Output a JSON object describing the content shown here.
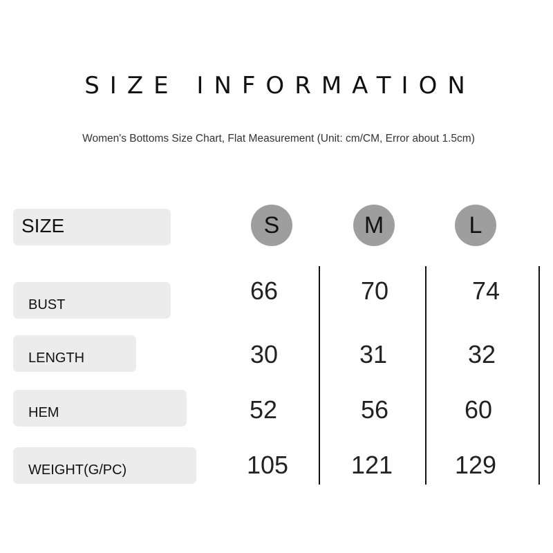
{
  "title": "SIZE INFORMATION",
  "subtitle": "Women's Bottoms Size Chart, Flat Measurement (Unit: cm/CM, Error about 1.5cm)",
  "header_label": "SIZE",
  "sizes": [
    "S",
    "M",
    "L"
  ],
  "rows": [
    {
      "label": "BUST",
      "values": [
        "66",
        "70",
        "74"
      ]
    },
    {
      "label": "LENGTH",
      "values": [
        "30",
        "31",
        "32"
      ]
    },
    {
      "label": "HEM",
      "values": [
        "52",
        "56",
        "60"
      ]
    },
    {
      "label": "WEIGHT(G/PC)",
      "values": [
        "105",
        "121",
        "129"
      ]
    }
  ],
  "colors": {
    "label_bg": "#ececec",
    "size_circle": "#9e9e9e"
  }
}
